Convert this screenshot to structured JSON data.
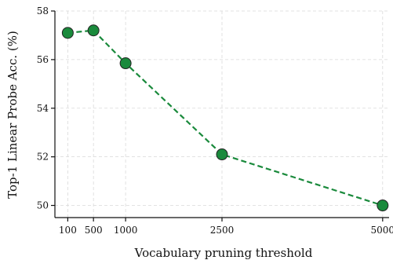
{
  "chart_data": {
    "type": "line",
    "xlabel": "Vocabulary pruning threshold",
    "ylabel": "Top-1 Linear Probe Acc.  (%)",
    "x": [
      100,
      500,
      1000,
      2500,
      5000
    ],
    "x_tick_labels": [
      "100",
      "500",
      "1000",
      "2500",
      "5000"
    ],
    "y_ticks": [
      50,
      52,
      54,
      56,
      58
    ],
    "ylim": [
      49.5,
      58
    ],
    "xlim": [
      -100,
      5100
    ],
    "grid": true,
    "series": [
      {
        "values": [
          57.1,
          57.2,
          55.85,
          52.1,
          50.0
        ],
        "color": "#1a8a3c"
      }
    ]
  }
}
